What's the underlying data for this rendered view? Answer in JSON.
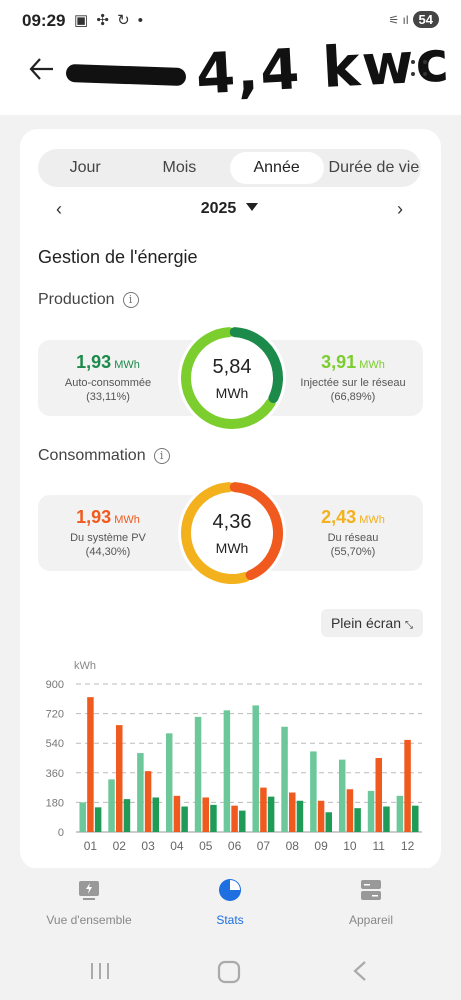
{
  "status_bar": {
    "time": "09:29",
    "left_icons": "▣ ✣ ↻ •",
    "signal": "⚟ ıl",
    "battery": "54"
  },
  "header": {
    "handwritten_note": "4,4 kwc"
  },
  "tabs": [
    {
      "label": "Jour",
      "active": false
    },
    {
      "label": "Mois",
      "active": false
    },
    {
      "label": "Année",
      "active": true
    },
    {
      "label": "Durée de vie",
      "active": false
    }
  ],
  "year": {
    "value": "2025",
    "prev": "‹",
    "next": "›"
  },
  "section_title": "Gestion de l'énergie",
  "production": {
    "title": "Production",
    "total": "5,84",
    "total_unit": "MWh",
    "left": {
      "value": "1,93",
      "unit": "MWh",
      "label": "Auto-consommée",
      "pct": "(33,11%)",
      "color": "#1b8a4a"
    },
    "right": {
      "value": "3,91",
      "unit": "MWh",
      "label": "Injectée sur le réseau",
      "pct": "(66,89%)",
      "color": "#7ccd2e"
    },
    "fraction_left": 0.3311
  },
  "consumption": {
    "title": "Consommation",
    "total": "4,36",
    "total_unit": "MWh",
    "left": {
      "value": "1,93",
      "unit": "MWh",
      "label": "Du système PV",
      "pct": "(44,30%)",
      "color": "#f05a1e"
    },
    "right": {
      "value": "2,43",
      "unit": "MWh",
      "label": "Du réseau",
      "pct": "(55,70%)",
      "color": "#f2b11d"
    },
    "fraction_left": 0.443
  },
  "fullscreen_label": "Plein écran",
  "chart_data": {
    "type": "bar",
    "ylabel": "kWh",
    "ylim": [
      0,
      900
    ],
    "yticks": [
      0,
      180,
      360,
      540,
      720,
      900
    ],
    "categories": [
      "01",
      "02",
      "03",
      "04",
      "05",
      "06",
      "07",
      "08",
      "09",
      "10",
      "11",
      "12"
    ],
    "series": [
      {
        "color": "#6cc89a",
        "values": [
          180,
          320,
          480,
          600,
          700,
          740,
          770,
          640,
          490,
          440,
          250,
          220
        ]
      },
      {
        "color": "#f05a1e",
        "values": [
          820,
          650,
          370,
          220,
          210,
          160,
          270,
          240,
          190,
          260,
          450,
          560
        ]
      },
      {
        "color": "#1f9b57",
        "values": [
          150,
          200,
          210,
          155,
          165,
          130,
          215,
          190,
          120,
          145,
          155,
          160
        ]
      }
    ],
    "grid": true
  },
  "bottom_nav": [
    {
      "label": "Vue d'ensemble",
      "icon": "overview-icon",
      "active": false
    },
    {
      "label": "Stats",
      "icon": "stats-icon",
      "active": true
    },
    {
      "label": "Appareil",
      "icon": "device-icon",
      "active": false
    }
  ]
}
